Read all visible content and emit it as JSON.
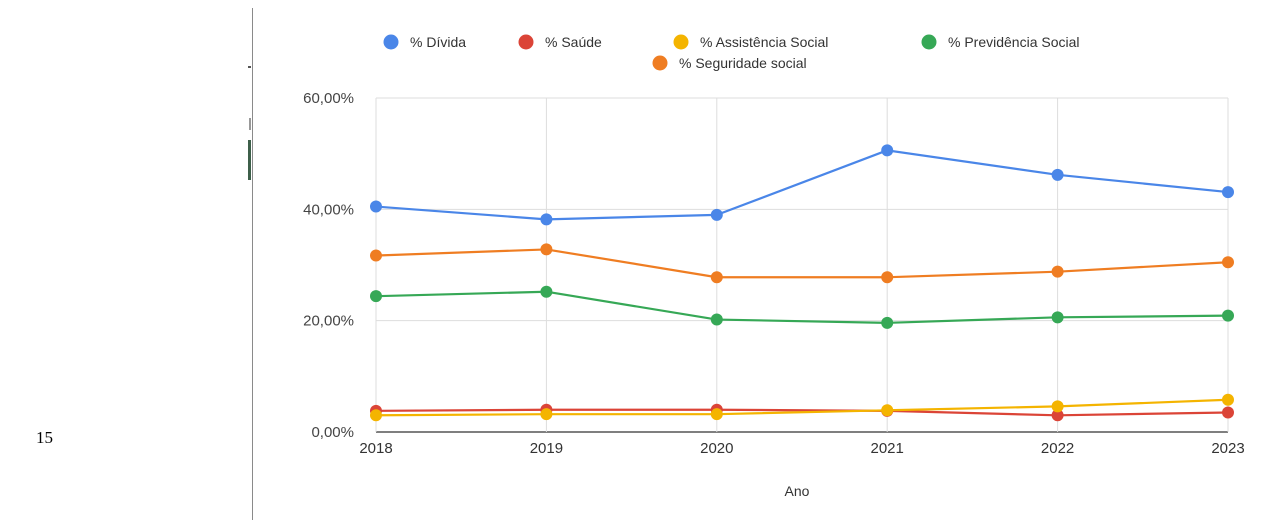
{
  "page_number": "15",
  "chart_data": {
    "type": "line",
    "title": "",
    "xlabel": "Ano",
    "ylabel": "",
    "categories": [
      "2018",
      "2019",
      "2020",
      "2021",
      "2022",
      "2023"
    ],
    "ylim": [
      0,
      60
    ],
    "yticks": [
      "0,00%",
      "20,00%",
      "40,00%",
      "60,00%"
    ],
    "ytick_values": [
      0,
      20,
      40,
      60
    ],
    "grid": true,
    "legend_position": "top",
    "series": [
      {
        "name": "% Dívida",
        "color": "#4a86e8",
        "values": [
          40.5,
          38.2,
          39.0,
          50.6,
          46.2,
          43.1
        ]
      },
      {
        "name": "%  Saúde",
        "color": "#db4437",
        "values": [
          3.8,
          4.0,
          4.0,
          3.8,
          3.0,
          3.5
        ]
      },
      {
        "name": "% Assistência Social",
        "color": "#f4b400",
        "values": [
          3.0,
          3.2,
          3.2,
          3.9,
          4.6,
          5.8
        ]
      },
      {
        "name": "% Previdência Social",
        "color": "#36a856",
        "values": [
          24.4,
          25.2,
          20.2,
          19.6,
          20.6,
          20.9
        ]
      },
      {
        "name": "% Seguridade social",
        "color": "#ef7d22",
        "values": [
          31.7,
          32.8,
          27.8,
          27.8,
          28.8,
          30.5
        ]
      }
    ]
  }
}
